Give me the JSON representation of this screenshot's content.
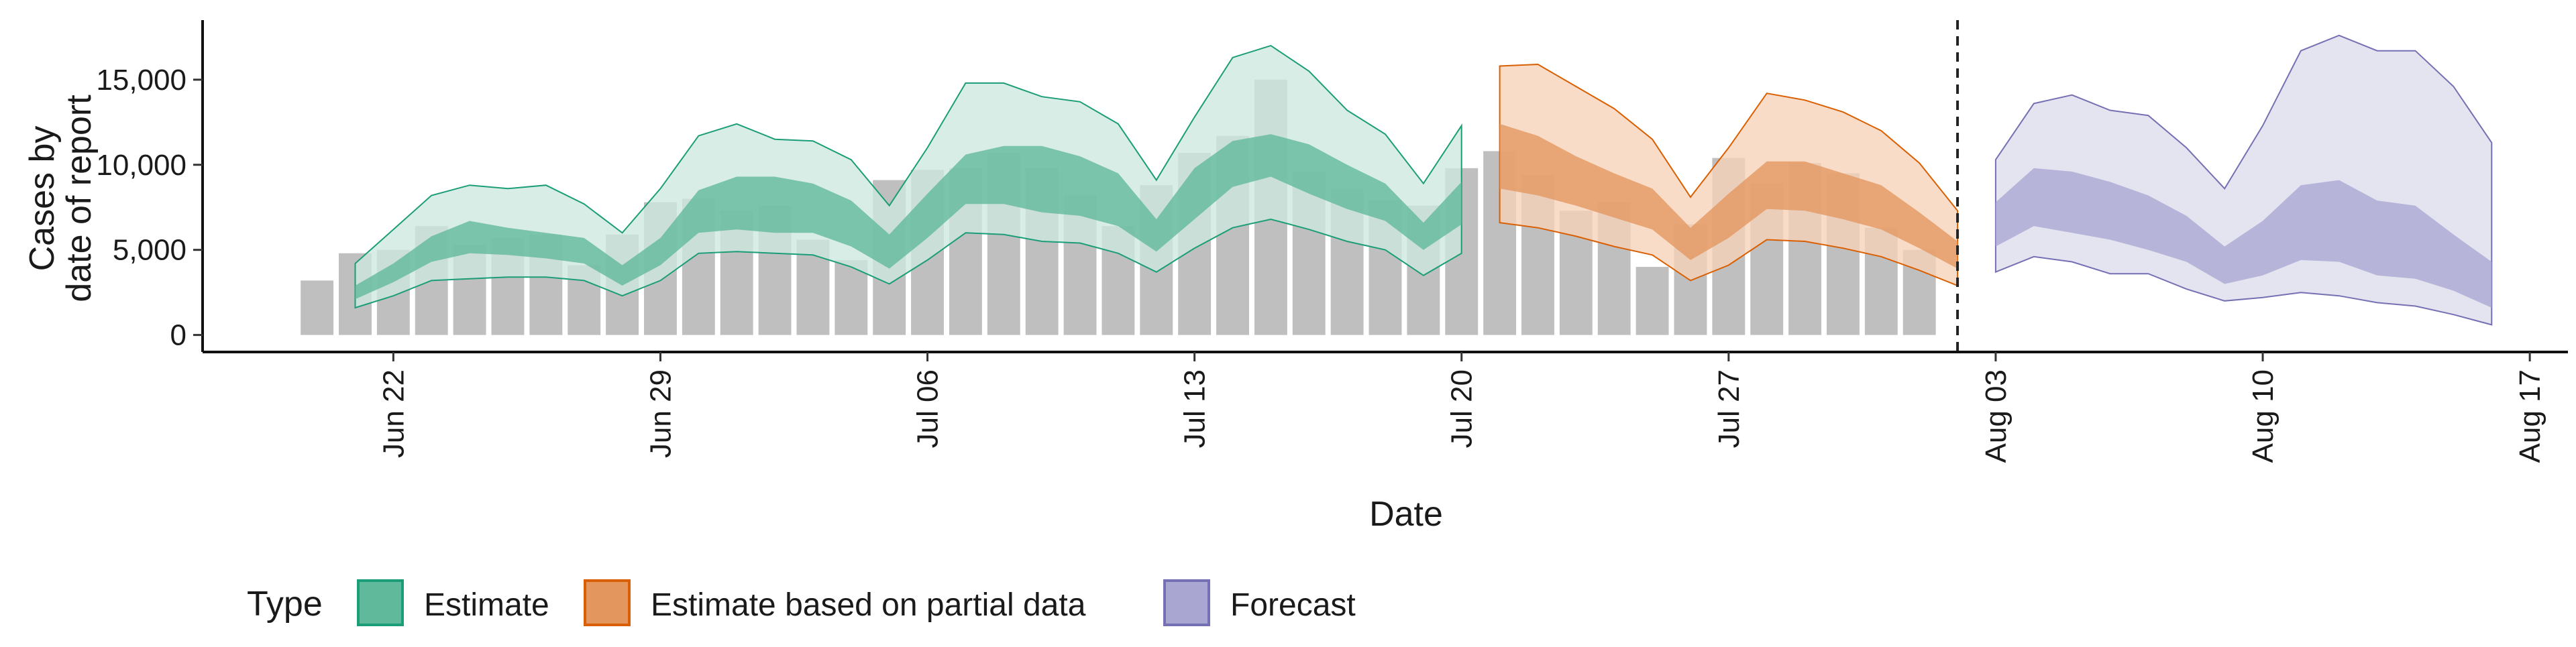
{
  "chart_data": {
    "type": "bar",
    "xlabel": "Date",
    "ylabel_lines": [
      "Cases by",
      "date of report"
    ],
    "ylim": [
      -1000,
      18500
    ],
    "yticks": [
      0,
      5000,
      10000,
      15000
    ],
    "ytick_labels": [
      "0",
      "5,000",
      "10,000",
      "15,000"
    ],
    "x_date_range": [
      "2020-06-17",
      "2020-08-18"
    ],
    "xticks": [
      "2020-06-22",
      "2020-06-29",
      "2020-07-06",
      "2020-07-13",
      "2020-07-20",
      "2020-07-27",
      "2020-08-03",
      "2020-08-10",
      "2020-08-17"
    ],
    "xtick_labels": [
      "Jun 22",
      "Jun 29",
      "Jul 06",
      "Jul 13",
      "Jul 20",
      "Jul 27",
      "Aug 03",
      "Aug 10",
      "Aug 17"
    ],
    "bar_color": "#bfbfbf",
    "bars": {
      "start_date": "2020-06-20",
      "values": [
        3200,
        4800,
        5000,
        6400,
        5300,
        5700,
        5900,
        4100,
        5900,
        7800,
        8000,
        7300,
        7600,
        5600,
        4400,
        9100,
        9700,
        9800,
        10700,
        9800,
        8200,
        6400,
        8800,
        10700,
        11700,
        15000,
        9600,
        8600,
        7900,
        7600,
        9800,
        10800,
        9400,
        7300,
        7800,
        4000,
        6500,
        10400,
        8900,
        10100,
        9500,
        6300,
        5000
      ]
    },
    "forecast_line_date": "2020-08-02",
    "series": [
      {
        "name": "Estimate",
        "color_outer": "#cde8df",
        "color_inner": "#5fb99a",
        "stroke": "#1b9e77",
        "start_date": "2020-06-21",
        "upper90": [
          4200,
          6200,
          8200,
          8800,
          8600,
          8800,
          7700,
          6000,
          8600,
          11700,
          12400,
          11500,
          11400,
          10300,
          7600,
          11000,
          14800,
          14800,
          14000,
          13700,
          12400,
          9100,
          12800,
          16300,
          17000,
          15500,
          13200,
          11800,
          8900,
          12300
        ],
        "upper50": [
          2900,
          4200,
          5800,
          6700,
          6300,
          6000,
          5700,
          4100,
          5700,
          8500,
          9300,
          9300,
          8900,
          7900,
          5900,
          8300,
          10600,
          11100,
          11100,
          10500,
          9500,
          6800,
          9800,
          11400,
          11800,
          11200,
          10000,
          8900,
          6600,
          9000
        ],
        "lower50": [
          2100,
          3100,
          4300,
          4800,
          4700,
          4500,
          4200,
          2900,
          4100,
          6000,
          6200,
          6000,
          6000,
          5200,
          3900,
          5700,
          7700,
          7700,
          7200,
          7000,
          6400,
          4900,
          6800,
          8700,
          9300,
          8300,
          7400,
          6700,
          5000,
          6500
        ],
        "lower90": [
          1600,
          2300,
          3200,
          3300,
          3400,
          3400,
          3200,
          2300,
          3200,
          4800,
          4900,
          4800,
          4700,
          4000,
          3000,
          4400,
          6000,
          5900,
          5500,
          5400,
          4800,
          3700,
          5100,
          6300,
          6800,
          6200,
          5500,
          5000,
          3500,
          4800
        ]
      },
      {
        "name": "Estimate based on partial data",
        "color_outer": "#f6d2b9",
        "color_inner": "#e3965e",
        "stroke": "#d95f02",
        "start_date": "2020-07-21",
        "upper90": [
          15800,
          15900,
          14600,
          13300,
          11500,
          8100,
          11000,
          14200,
          13800,
          13100,
          12000,
          10100,
          7300
        ],
        "upper50": [
          12400,
          11700,
          10500,
          9500,
          8600,
          6300,
          8300,
          10200,
          10200,
          9500,
          8800,
          7200,
          5500
        ],
        "lower50": [
          8600,
          8200,
          7600,
          6900,
          6200,
          4400,
          5700,
          7400,
          7300,
          6800,
          6200,
          5100,
          3900
        ],
        "lower90": [
          6600,
          6300,
          5800,
          5200,
          4700,
          3200,
          4100,
          5600,
          5500,
          5100,
          4600,
          3800,
          2900
        ]
      },
      {
        "name": "Forecast",
        "color_outer": "#dcdcec",
        "color_inner": "#a9a6d2",
        "stroke": "#7570b3",
        "start_date": "2020-08-03",
        "upper90": [
          10300,
          13600,
          14100,
          13200,
          12900,
          11000,
          8600,
          12300,
          16700,
          17600,
          16700,
          16700,
          14600,
          11300
        ],
        "upper50": [
          7800,
          9800,
          9600,
          9000,
          8200,
          7000,
          5200,
          6700,
          8800,
          9100,
          7900,
          7600,
          5900,
          4300
        ],
        "lower50": [
          5200,
          6400,
          6000,
          5600,
          5000,
          4300,
          3000,
          3500,
          4400,
          4300,
          3500,
          3300,
          2600,
          1600
        ],
        "lower90": [
          3700,
          4600,
          4300,
          3600,
          3600,
          2700,
          2000,
          2200,
          2500,
          2300,
          1900,
          1700,
          1200,
          600
        ]
      }
    ],
    "legend": {
      "title": "Type",
      "position": "bottom-left",
      "items": [
        "Estimate",
        "Estimate based on partial data",
        "Forecast"
      ]
    },
    "grid": false
  }
}
